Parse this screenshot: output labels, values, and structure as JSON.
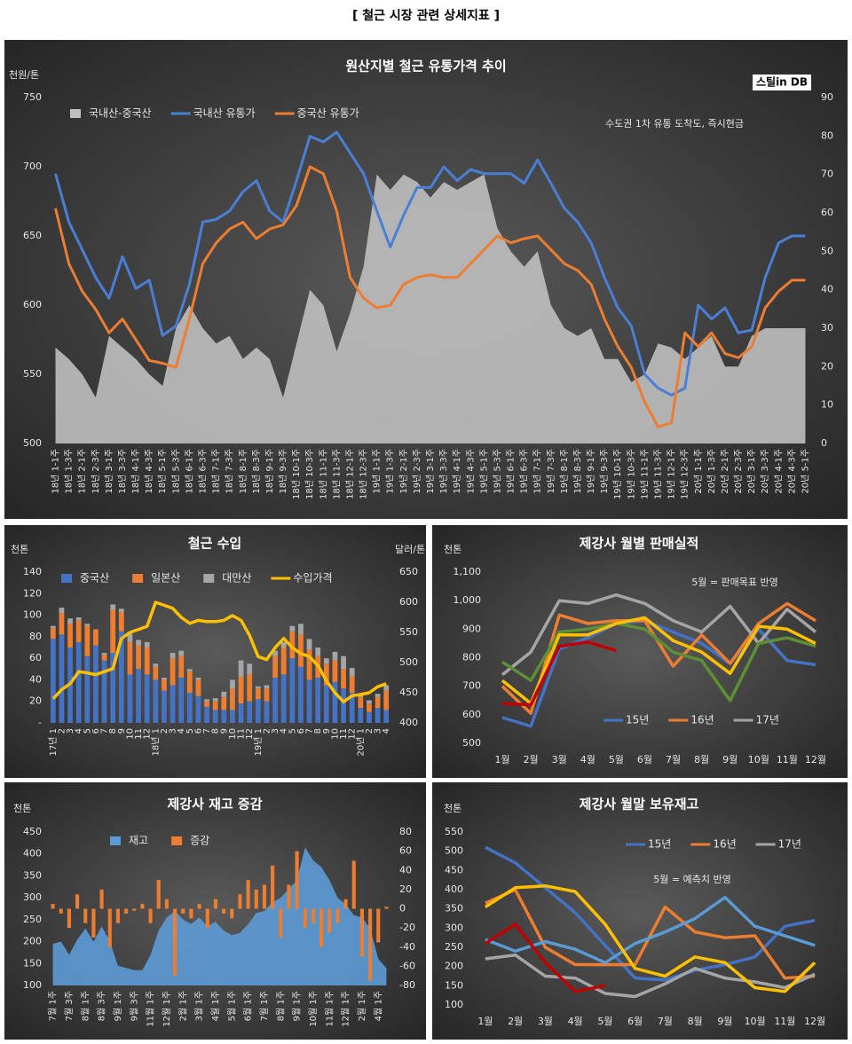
{
  "page_title": "[ 철근 시장 관련 상세지표 ]",
  "chart_data": [
    {
      "type": "line",
      "title": "원산지별 철근 유통가격 추이",
      "y_label": "천원/톤",
      "logo": "스틸in DB",
      "annotation": "수도권 1차 유통 도착도, 즉시현금",
      "categories": [
        "18년 1-1주",
        "18년 1-3주",
        "18년 2-1주",
        "18년 2-3주",
        "18년 3-1주",
        "18년 3-3주",
        "18년 4-1주",
        "18년 4-3주",
        "18년 5-1주",
        "18년 5-3주",
        "18년 6-1주",
        "18년 6-3주",
        "18년 7-1주",
        "18년 7-3주",
        "18년 8-1주",
        "18년 8-3주",
        "18년 9-1주",
        "18년 9-3주",
        "18년 10-1주",
        "18년 10-3주",
        "18년 11-1주",
        "18년 11-3주",
        "18년 12-1주",
        "18년 12-3주",
        "19년 1-1주",
        "19년 1-3주",
        "19년 2-1주",
        "19년 2-3주",
        "19년 3-1주",
        "19년 3-3주",
        "19년 4-1주",
        "19년 4-3주",
        "19년 5-1주",
        "19년 5-3주",
        "19년 6-1주",
        "19년 6-3주",
        "19년 7-1주",
        "19년 7-3주",
        "19년 8-1주",
        "19년 8-3주",
        "19년 9-1주",
        "19년 9-3주",
        "19년 10-1주",
        "19년 10-3주",
        "19년 11-1주",
        "19년 11-3주",
        "19년 12-1주",
        "19년 12-3주",
        "20년 1-1주",
        "20년 1-3주",
        "20년 2-1주",
        "20년 2-3주",
        "20년 3-1주",
        "20년 3-3주",
        "20년 4-1주",
        "20년 4-3주",
        "20년 5-1주"
      ],
      "series": [
        {
          "name": "국내산-중국산",
          "type": "area",
          "axis": "y2",
          "color": "#bfbfbf",
          "values": [
            25,
            22,
            18,
            12,
            28,
            25,
            22,
            18,
            15,
            30,
            36,
            30,
            26,
            28,
            22,
            25,
            22,
            12,
            26,
            40,
            36,
            24,
            34,
            46,
            70,
            66,
            70,
            68,
            64,
            68,
            66,
            68,
            70,
            56,
            50,
            46,
            50,
            36,
            30,
            28,
            30,
            22,
            22,
            16,
            18,
            26,
            25,
            22,
            25,
            28,
            20,
            20,
            28,
            30,
            30,
            30,
            30
          ]
        },
        {
          "name": "국내산 유통가",
          "color": "#4a7fd6",
          "values": [
            695,
            660,
            640,
            620,
            605,
            635,
            612,
            618,
            578,
            585,
            615,
            660,
            662,
            668,
            682,
            690,
            668,
            660,
            690,
            722,
            718,
            725,
            710,
            695,
            668,
            642,
            665,
            685,
            685,
            700,
            690,
            698,
            695,
            695,
            695,
            688,
            705,
            688,
            670,
            660,
            645,
            620,
            598,
            585,
            550,
            540,
            535,
            540,
            600,
            590,
            598,
            580,
            582,
            620,
            645,
            650,
            650
          ]
        },
        {
          "name": "중국산 유통가",
          "color": "#ed7d31",
          "values": [
            670,
            630,
            610,
            597,
            580,
            590,
            575,
            560,
            558,
            555,
            590,
            630,
            645,
            655,
            660,
            648,
            655,
            658,
            672,
            700,
            695,
            668,
            620,
            605,
            598,
            600,
            615,
            620,
            622,
            620,
            620,
            630,
            640,
            650,
            645,
            648,
            650,
            640,
            630,
            625,
            615,
            590,
            570,
            555,
            530,
            512,
            515,
            580,
            570,
            580,
            565,
            562,
            570,
            598,
            610,
            618,
            618
          ]
        }
      ],
      "ylim": [
        500,
        750
      ],
      "yticks": [
        500,
        550,
        600,
        650,
        700,
        750
      ],
      "y2lim": [
        0,
        90
      ],
      "y2ticks": [
        0,
        10,
        20,
        30,
        40,
        50,
        60,
        70,
        80,
        90
      ]
    },
    {
      "type": "bar",
      "title": "철근 수입",
      "y_label": "천톤",
      "y2_label": "달러/톤",
      "categories": [
        "17년 1",
        "2",
        "3",
        "4",
        "5",
        "6",
        "7",
        "8",
        "9",
        "10",
        "11",
        "12",
        "18년 1",
        "2",
        "3",
        "4",
        "5",
        "6",
        "7",
        "8",
        "9",
        "10",
        "11",
        "12",
        "19년 1",
        "2",
        "3",
        "4",
        "5",
        "6",
        "7",
        "8",
        "9",
        "10",
        "11",
        "12",
        "20년 1",
        "2",
        "3",
        "4"
      ],
      "series": [
        {
          "name": "중국산",
          "color": "#4472c4",
          "values": [
            78,
            82,
            70,
            75,
            62,
            72,
            58,
            65,
            85,
            45,
            50,
            45,
            40,
            30,
            35,
            42,
            28,
            25,
            15,
            12,
            12,
            12,
            18,
            20,
            22,
            20,
            42,
            45,
            60,
            52,
            40,
            42,
            35,
            38,
            32,
            28,
            14,
            10,
            14,
            12
          ]
        },
        {
          "name": "일본산",
          "color": "#ed7d31",
          "values": [
            10,
            20,
            22,
            20,
            28,
            15,
            5,
            40,
            18,
            30,
            22,
            25,
            12,
            10,
            25,
            20,
            20,
            15,
            5,
            8,
            12,
            20,
            25,
            25,
            10,
            12,
            20,
            25,
            25,
            30,
            28,
            20,
            20,
            20,
            18,
            15,
            10,
            8,
            10,
            18
          ]
        },
        {
          "name": "대만산",
          "color": "#a5a5a5",
          "values": [
            2,
            5,
            5,
            3,
            2,
            0,
            2,
            5,
            3,
            8,
            5,
            5,
            3,
            2,
            5,
            5,
            2,
            2,
            2,
            3,
            5,
            8,
            15,
            10,
            2,
            3,
            5,
            5,
            5,
            10,
            10,
            8,
            5,
            8,
            12,
            8,
            2,
            3,
            3,
            5
          ]
        },
        {
          "name": "수입가격",
          "type": "line",
          "axis": "y2",
          "color": "#ffc000",
          "values": [
            440,
            455,
            465,
            485,
            483,
            480,
            485,
            490,
            540,
            550,
            555,
            560,
            600,
            595,
            590,
            575,
            565,
            570,
            568,
            568,
            570,
            578,
            570,
            545,
            510,
            505,
            525,
            540,
            525,
            515,
            510,
            495,
            470,
            450,
            435,
            445,
            447,
            450,
            460,
            465
          ]
        }
      ],
      "ylim": [
        0,
        140
      ],
      "yticks": [
        {
          "value": 0,
          "label": "-"
        },
        20,
        40,
        60,
        80,
        100,
        120,
        140
      ],
      "y2lim": [
        400,
        650
      ],
      "y2ticks": [
        400,
        450,
        500,
        550,
        600,
        650
      ]
    },
    {
      "type": "line",
      "title": "제강사 월별 판매실적",
      "y_label": "천톤",
      "annotation": "5월 = 판매목표 반영",
      "categories": [
        "1월",
        "2월",
        "3월",
        "4월",
        "5월",
        "6월",
        "7월",
        "8월",
        "9월",
        "10월",
        "11월",
        "12월"
      ],
      "series": [
        {
          "name": "15년",
          "color": "#4472c4",
          "values": [
            590,
            560,
            830,
            870,
            920,
            930,
            890,
            850,
            780,
            900,
            790,
            775
          ]
        },
        {
          "name": "16년",
          "color": "#ed7d31",
          "values": [
            700,
            605,
            950,
            920,
            930,
            930,
            770,
            880,
            780,
            920,
            990,
            930
          ]
        },
        {
          "name": "17년",
          "color": "#a5a5a5",
          "values": [
            740,
            820,
            1000,
            990,
            1020,
            990,
            930,
            890,
            980,
            850,
            970,
            890
          ]
        },
        {
          "color": "#5e8f32",
          "values": [
            785,
            720,
            890,
            900,
            920,
            900,
            820,
            790,
            650,
            850,
            870,
            840
          ]
        },
        {
          "color": "#ffc000",
          "values": [
            720,
            640,
            880,
            880,
            920,
            940,
            860,
            820,
            745,
            910,
            900,
            850
          ]
        },
        {
          "color": "#c00000",
          "values": [
            640,
            635,
            840,
            855,
            825,
            null,
            null,
            null,
            null,
            null,
            null,
            null
          ]
        }
      ],
      "ylim": [
        500,
        1100
      ],
      "yticks": [
        500,
        600,
        700,
        800,
        900,
        {
          "value": 1000,
          "label": "1,000"
        },
        {
          "value": 1100,
          "label": "1,100"
        }
      ]
    },
    {
      "type": "bar",
      "title": "제강사 재고 증감",
      "y_label": "천톤",
      "categories": [
        "7월 1주",
        null,
        "7월 3주",
        null,
        "8월 1주",
        null,
        "8월 3주",
        null,
        "9월 1주",
        null,
        "9월 3주",
        null,
        "11월 1주",
        null,
        "12월 1주",
        null,
        "2월 1주",
        null,
        "3월 1주",
        null,
        "4월 1주",
        null,
        "5월 1주",
        null,
        "6월 1주",
        null,
        "7월 1주",
        null,
        "8월 1주",
        null,
        "9월 1주",
        null,
        "10월 1주",
        null,
        "11월 1주",
        null,
        "12월 1주",
        null,
        "2월 1주",
        null,
        "4월 1주",
        null
      ],
      "series": [
        {
          "name": "재고",
          "type": "area",
          "color": "#5b9bd5",
          "values": [
            195,
            200,
            170,
            205,
            230,
            200,
            235,
            200,
            145,
            140,
            135,
            135,
            170,
            225,
            255,
            270,
            250,
            240,
            255,
            235,
            245,
            225,
            215,
            220,
            240,
            265,
            270,
            290,
            300,
            320,
            340,
            415,
            385,
            370,
            340,
            300,
            285,
            260,
            255,
            230,
            160,
            140
          ]
        },
        {
          "name": "증감",
          "axis": "y2",
          "color": "#ed7d31",
          "values": [
            5,
            -5,
            -20,
            15,
            -15,
            -30,
            20,
            -40,
            -15,
            -5,
            -2,
            5,
            -15,
            30,
            10,
            -70,
            -5,
            -10,
            5,
            -20,
            10,
            -5,
            -10,
            15,
            30,
            20,
            25,
            45,
            -30,
            25,
            60,
            -20,
            -15,
            -40,
            -25,
            -15,
            10,
            50,
            -50,
            -75,
            -35,
            2
          ]
        }
      ],
      "ylim": [
        100,
        450
      ],
      "yticks": [
        100,
        150,
        200,
        250,
        300,
        350,
        400,
        450
      ],
      "y2lim": [
        -80,
        80
      ],
      "y2ticks": [
        -80,
        -60,
        -40,
        -20,
        0,
        20,
        40,
        60,
        80
      ]
    },
    {
      "type": "line",
      "title": "제강사 월말 보유재고",
      "y_label": "천톤",
      "annotation": "5월 = 예측치 반영",
      "categories": [
        "1월",
        "2월",
        "3월",
        "4월",
        "5월",
        "6월",
        "7월",
        "8월",
        "9월",
        "10월",
        "11월",
        "12월"
      ],
      "series": [
        {
          "name": "15년",
          "color": "#4472c4",
          "values": [
            510,
            470,
            405,
            340,
            255,
            170,
            165,
            190,
            205,
            225,
            305,
            320
          ]
        },
        {
          "name": "16년",
          "color": "#ed7d31",
          "values": [
            365,
            400,
            250,
            205,
            205,
            205,
            355,
            290,
            275,
            280,
            170,
            175
          ]
        },
        {
          "name": "17년",
          "color": "#a5a5a5",
          "values": [
            220,
            230,
            175,
            170,
            130,
            122,
            155,
            195,
            170,
            160,
            145,
            180
          ]
        },
        {
          "color": "#5b9bd5",
          "values": [
            270,
            240,
            265,
            245,
            210,
            260,
            290,
            325,
            380,
            305,
            280,
            255
          ]
        },
        {
          "color": "#ffc000",
          "values": [
            355,
            405,
            410,
            395,
            310,
            195,
            175,
            225,
            210,
            145,
            135,
            210
          ]
        },
        {
          "color": "#c00000",
          "values": [
            260,
            310,
            210,
            135,
            150,
            null,
            null,
            null,
            null,
            null,
            null,
            null
          ]
        }
      ],
      "ylim": [
        100,
        550
      ],
      "yticks": [
        100,
        150,
        200,
        250,
        300,
        350,
        400,
        450,
        500,
        550
      ]
    }
  ]
}
